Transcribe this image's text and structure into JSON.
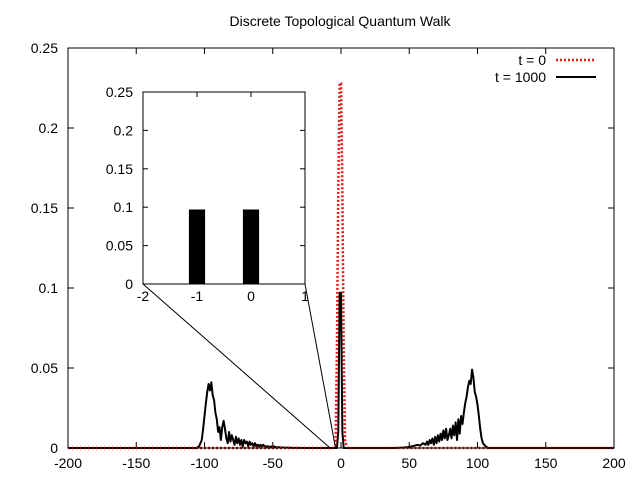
{
  "chart_data": [
    {
      "type": "line",
      "title": "Discrete Topological Quantum Walk",
      "xlabel": "",
      "ylabel": "",
      "xlim": [
        -200,
        200
      ],
      "ylim": [
        0,
        0.25
      ],
      "xticks": [
        -200,
        -150,
        -100,
        -50,
        0,
        50,
        100,
        150,
        200
      ],
      "yticks": [
        0,
        0.05,
        0.1,
        0.15,
        0.2,
        0.25
      ],
      "xtick_labels": [
        "-200",
        "-150",
        "-100",
        "-50",
        "0",
        "50",
        "100",
        "150",
        "200"
      ],
      "ytick_labels": [
        "0",
        "0.05",
        "0.1",
        "0.15",
        "0.2",
        "0.25"
      ],
      "legend_position": "top-right",
      "series": [
        {
          "name": "t = 0",
          "color": "#e41a1c",
          "style": "dotted",
          "x": [
            -200,
            -6,
            -4,
            -3,
            -2,
            -1,
            0,
            1,
            2,
            3,
            5,
            200
          ],
          "y": [
            0,
            0,
            0.002,
            0.06,
            0.16,
            0.228,
            0.228,
            0.16,
            0.06,
            0.004,
            0,
            0
          ]
        },
        {
          "name": "t = 1000",
          "color": "#000000",
          "style": "solid",
          "x": [
            -200,
            -106,
            -104,
            -102,
            -101,
            -100,
            -99,
            -98,
            -97,
            -96,
            -95,
            -94,
            -93,
            -92,
            -91,
            -90,
            -89,
            -88,
            -87,
            -86,
            -85,
            -84,
            -83,
            -82,
            -81,
            -80,
            -79,
            -78,
            -77,
            -76,
            -75,
            -74,
            -73,
            -72,
            -71,
            -70,
            -69,
            -68,
            -67,
            -66,
            -65,
            -64,
            -63,
            -62,
            -61,
            -60,
            -59,
            -58,
            -57,
            -56,
            -55,
            -54,
            -53,
            -52,
            -51,
            -50,
            -49,
            -48,
            -47,
            -46,
            -45,
            -44,
            -43,
            -42,
            -41,
            -40,
            -35,
            -25,
            -3,
            -2,
            -1,
            0,
            1,
            2,
            3,
            40,
            44,
            46,
            48,
            50,
            52,
            54,
            56,
            58,
            60,
            62,
            63,
            64,
            65,
            66,
            67,
            68,
            69,
            70,
            71,
            72,
            73,
            74,
            75,
            76,
            77,
            78,
            79,
            80,
            81,
            82,
            83,
            84,
            85,
            86,
            87,
            88,
            89,
            90,
            91,
            92,
            93,
            94,
            95,
            96,
            97,
            98,
            99,
            100,
            101,
            102,
            103,
            104,
            106,
            108,
            200
          ],
          "y": [
            0,
            0,
            0.001,
            0.005,
            0.012,
            0.02,
            0.028,
            0.035,
            0.04,
            0.036,
            0.041,
            0.033,
            0.03,
            0.022,
            0.018,
            0.01,
            0.013,
            0.005,
            0.013,
            0.017,
            0.012,
            0.006,
            0.003,
            0.01,
            0.004,
            0.008,
            0.005,
            0.002,
            0.007,
            0.003,
            0.006,
            0.002,
            0.005,
            0.001,
            0.005,
            0.003,
            0.004,
            0.001,
            0.004,
            0.002,
            0.003,
            0.001,
            0.003,
            0.001,
            0.002,
            0.001,
            0.002,
            0.001,
            0.002,
            0.001,
            0.001,
            0.001,
            0.001,
            0.0005,
            0.001,
            0.0005,
            0.001,
            0.0005,
            0.0005,
            0.0005,
            0.0005,
            0.0003,
            0.0003,
            0.0003,
            0.0002,
            0.0002,
            0.0001,
            0,
            0,
            0.01,
            0.097,
            0.097,
            0.01,
            0,
            0,
            0,
            0.0002,
            0.0003,
            0.0005,
            0.0008,
            0.001,
            0.0015,
            0.002,
            0.0015,
            0.003,
            0.002,
            0.004,
            0.002,
            0.005,
            0.003,
            0.006,
            0.002,
            0.007,
            0.003,
            0.008,
            0.004,
            0.009,
            0.005,
            0.011,
            0.006,
            0.012,
            0.005,
            0.008,
            0.012,
            0.006,
            0.014,
            0.008,
            0.016,
            0.005,
            0.018,
            0.009,
            0.02,
            0.015,
            0.022,
            0.028,
            0.032,
            0.038,
            0.042,
            0.04,
            0.049,
            0.044,
            0.035,
            0.032,
            0.027,
            0.02,
            0.012,
            0.006,
            0.003,
            0.001,
            0,
            0
          ]
        }
      ]
    },
    {
      "type": "bar",
      "title": "",
      "inset": true,
      "xlim": [
        -2,
        1
      ],
      "ylim": [
        0,
        0.25
      ],
      "xticks": [
        -2,
        -1,
        0,
        1
      ],
      "yticks": [
        0,
        0.05,
        0.1,
        0.15,
        0.2,
        0.25
      ],
      "xtick_labels": [
        "-2",
        "-1",
        "0",
        "1"
      ],
      "ytick_labels": [
        "0",
        "0.05",
        "0.1",
        "0.15",
        "0.2",
        "0.25"
      ],
      "categories": [
        -1,
        0
      ],
      "values": [
        0.097,
        0.097
      ],
      "bar_width": 0.3,
      "color": "#000000"
    }
  ]
}
